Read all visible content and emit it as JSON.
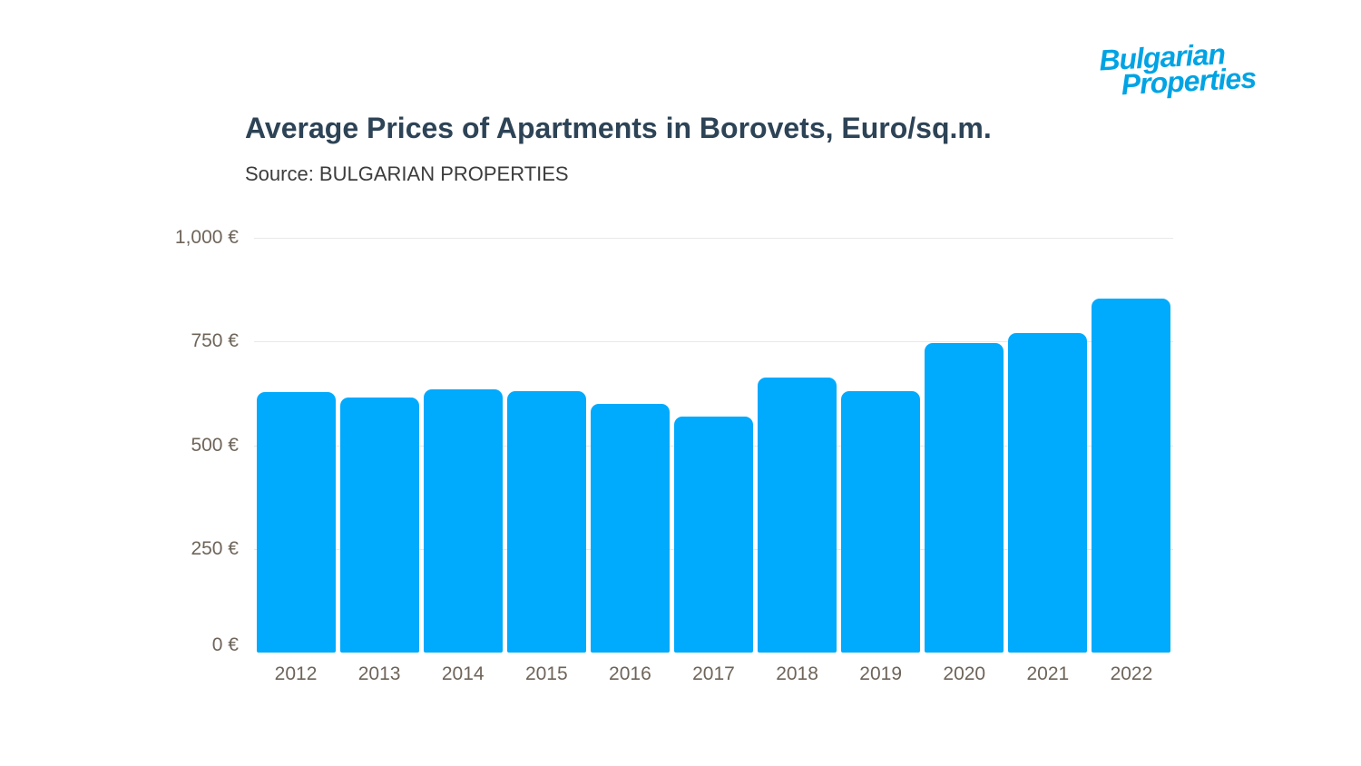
{
  "logo": {
    "line1": "Bulgarian",
    "line2": "Properties"
  },
  "colors": {
    "bar": "#00aafc",
    "grid": "#e8e8e8",
    "axis_labels": "#6e6459",
    "title": "#2d4356",
    "source": "#3c3c3c",
    "logo": "#00a3e4",
    "background": "#ffffff"
  },
  "chart_data": {
    "type": "bar",
    "title": "Average Prices of Apartments in Borovets, Euro/sq.m.",
    "source": "Source: BULGARIAN PROPERTIES",
    "categories": [
      "2012",
      "2013",
      "2014",
      "2015",
      "2016",
      "2017",
      "2018",
      "2019",
      "2020",
      "2021",
      "2022"
    ],
    "values": [
      628,
      615,
      634,
      630,
      600,
      568,
      663,
      631,
      746,
      771,
      853
    ],
    "unit": "Euro/sq.m.",
    "xlabel": "",
    "ylabel": "",
    "ylim": [
      0,
      1000
    ],
    "y_ticks": [
      {
        "value": 1000,
        "label": "1,000 €"
      },
      {
        "value": 750,
        "label": "750 €"
      },
      {
        "value": 500,
        "label": "500 €"
      },
      {
        "value": 250,
        "label": "250 €"
      },
      {
        "value": 0,
        "label": "0 €"
      }
    ],
    "grid": "horizontal",
    "legend": "none",
    "bar_color": "#00aafc"
  }
}
